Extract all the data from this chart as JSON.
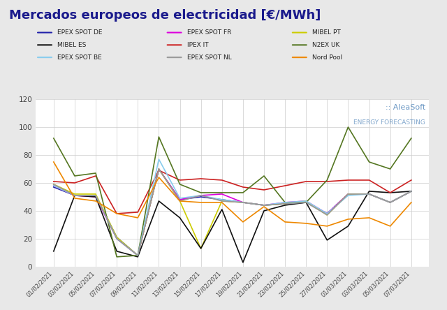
{
  "title": "Mercados europeos de electricidad [€/MWh]",
  "title_color": "#1a1a8c",
  "background_color": "#e8e8e8",
  "plot_background": "#ffffff",
  "grid_color": "#cccccc",
  "dates": [
    "01/02/2021",
    "03/02/2021",
    "05/02/2021",
    "07/02/2021",
    "09/02/2021",
    "11/02/2021",
    "13/02/2021",
    "15/02/2021",
    "17/02/2021",
    "19/02/2021",
    "21/02/2021",
    "23/02/2021",
    "25/02/2021",
    "27/02/2021",
    "01/03/2021",
    "03/03/2021",
    "05/03/2021",
    "07/03/2021"
  ],
  "series": {
    "EPEX SPOT DE": {
      "color": "#2222aa",
      "values": [
        57,
        51,
        51,
        21,
        8,
        70,
        48,
        50,
        48,
        46,
        44,
        45,
        46,
        38,
        52,
        52,
        46,
        54
      ]
    },
    "EPEX SPOT FR": {
      "color": "#dd00dd",
      "values": [
        58,
        51,
        50,
        20,
        8,
        70,
        48,
        51,
        52,
        46,
        44,
        46,
        47,
        38,
        52,
        52,
        46,
        54
      ]
    },
    "MIBEL PT": {
      "color": "#cccc00",
      "values": [
        59,
        52,
        52,
        21,
        8,
        70,
        47,
        13,
        47,
        46,
        44,
        45,
        47,
        37,
        52,
        52,
        46,
        54
      ]
    },
    "MIBEL ES": {
      "color": "#111111",
      "values": [
        11,
        51,
        50,
        11,
        7,
        47,
        35,
        13,
        41,
        3,
        40,
        44,
        46,
        19,
        29,
        54,
        53,
        54
      ]
    },
    "IPEX IT": {
      "color": "#cc2222",
      "values": [
        61,
        60,
        65,
        38,
        39,
        69,
        62,
        63,
        62,
        57,
        55,
        58,
        61,
        61,
        62,
        62,
        53,
        62
      ]
    },
    "N2EX UK": {
      "color": "#557722",
      "values": [
        92,
        65,
        67,
        7,
        8,
        93,
        59,
        53,
        53,
        53,
        65,
        46,
        46,
        62,
        100,
        75,
        70,
        92
      ]
    },
    "EPEX SPOT BE": {
      "color": "#88ccee",
      "values": [
        58,
        51,
        51,
        20,
        8,
        77,
        49,
        51,
        48,
        46,
        44,
        46,
        47,
        38,
        51,
        52,
        46,
        54
      ]
    },
    "EPEX SPOT NL": {
      "color": "#999999",
      "values": [
        59,
        51,
        51,
        20,
        8,
        70,
        47,
        51,
        47,
        46,
        44,
        45,
        46,
        37,
        52,
        52,
        46,
        54
      ]
    },
    "Nord Pool": {
      "color": "#ee8800",
      "values": [
        75,
        49,
        47,
        38,
        35,
        64,
        47,
        46,
        46,
        32,
        43,
        32,
        31,
        29,
        34,
        35,
        29,
        46
      ]
    }
  },
  "legend_order": [
    [
      "EPEX SPOT DE",
      "EPEX SPOT FR",
      "MIBEL PT"
    ],
    [
      "MIBEL ES",
      "IPEX IT",
      "N2EX UK"
    ],
    [
      "EPEX SPOT BE",
      "EPEX SPOT NL",
      "Nord Pool"
    ]
  ],
  "ylim": [
    0,
    120
  ],
  "yticks": [
    0,
    20,
    40,
    60,
    80,
    100,
    120
  ],
  "watermark_text": ":: AleaSoft",
  "watermark_sub": "ENERGY FORECASTING"
}
